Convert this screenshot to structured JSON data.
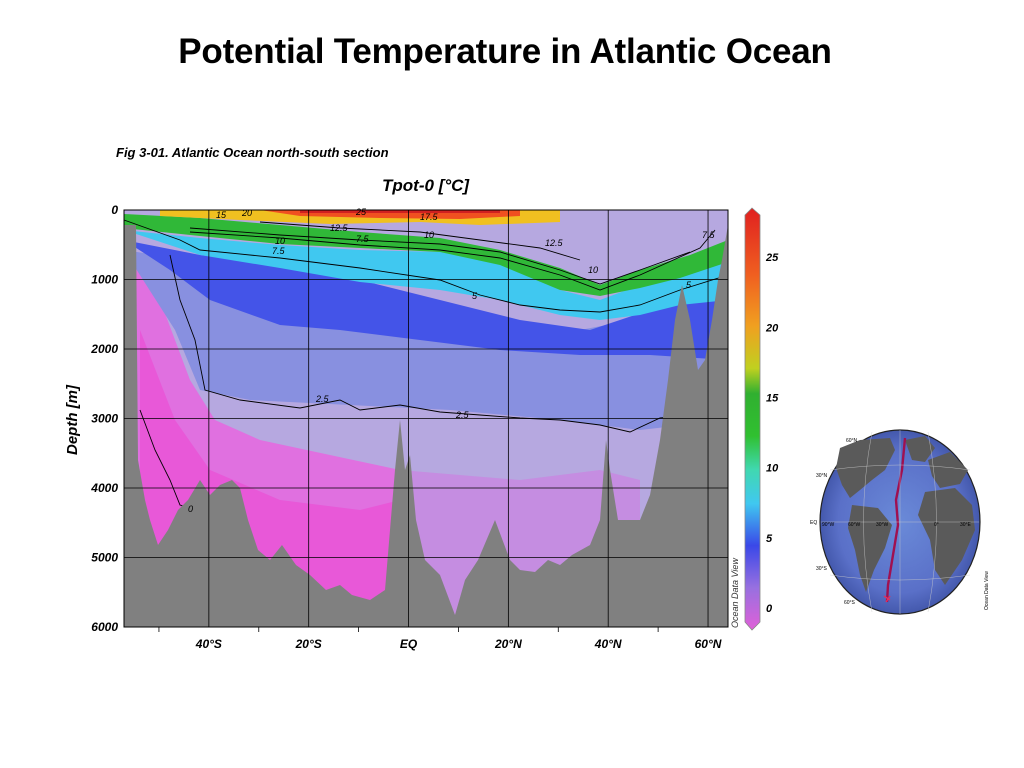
{
  "slide": {
    "title": "Potential Temperature in Atlantic Ocean",
    "caption": "Fig 3-01.  Atlantic Ocean north-south section"
  },
  "chart_data": {
    "type": "heatmap",
    "title": "Tpot-0 [°C]",
    "xlabel": "",
    "ylabel": "Depth [m]",
    "x_ticks": [
      "40°S",
      "20°S",
      "EQ",
      "20°N",
      "40°N",
      "60°N"
    ],
    "x_tick_lat": [
      -40,
      -20,
      0,
      20,
      40,
      60
    ],
    "xlim": [
      -57,
      64
    ],
    "y_ticks": [
      0,
      1000,
      2000,
      3000,
      4000,
      5000,
      6000
    ],
    "ylim": [
      0,
      6000
    ],
    "grid": true,
    "colorbar": {
      "ticks": [
        0,
        5,
        10,
        15,
        20,
        25
      ],
      "range": [
        -1,
        28
      ],
      "colors": [
        "#e060d8",
        "#3a48e8",
        "#40c8f0",
        "#30c030",
        "#f0a020",
        "#e02020"
      ]
    },
    "contours": [
      {
        "label": "25",
        "depth_m": 30
      },
      {
        "label": "20",
        "depth_m": 60
      },
      {
        "label": "17.5",
        "depth_m": 100
      },
      {
        "label": "15",
        "depth_m": 150
      },
      {
        "label": "12.5",
        "depth_m": 300
      },
      {
        "label": "10",
        "depth_m": 500
      },
      {
        "label": "7.5",
        "depth_m": 650
      },
      {
        "label": "5",
        "depth_m": 1100
      },
      {
        "label": "2.5",
        "depth_m": 2900
      },
      {
        "label": "0",
        "depth_m": 4500
      }
    ],
    "watermark": "Ocean Data View"
  },
  "globe": {
    "lat_labels": [
      "60°N",
      "30°N",
      "EQ",
      "30°S",
      "60°S"
    ],
    "lon_labels": [
      "90°W",
      "60°W",
      "30°W",
      "0°",
      "30°E"
    ],
    "watermark": "Ocean Data View"
  }
}
